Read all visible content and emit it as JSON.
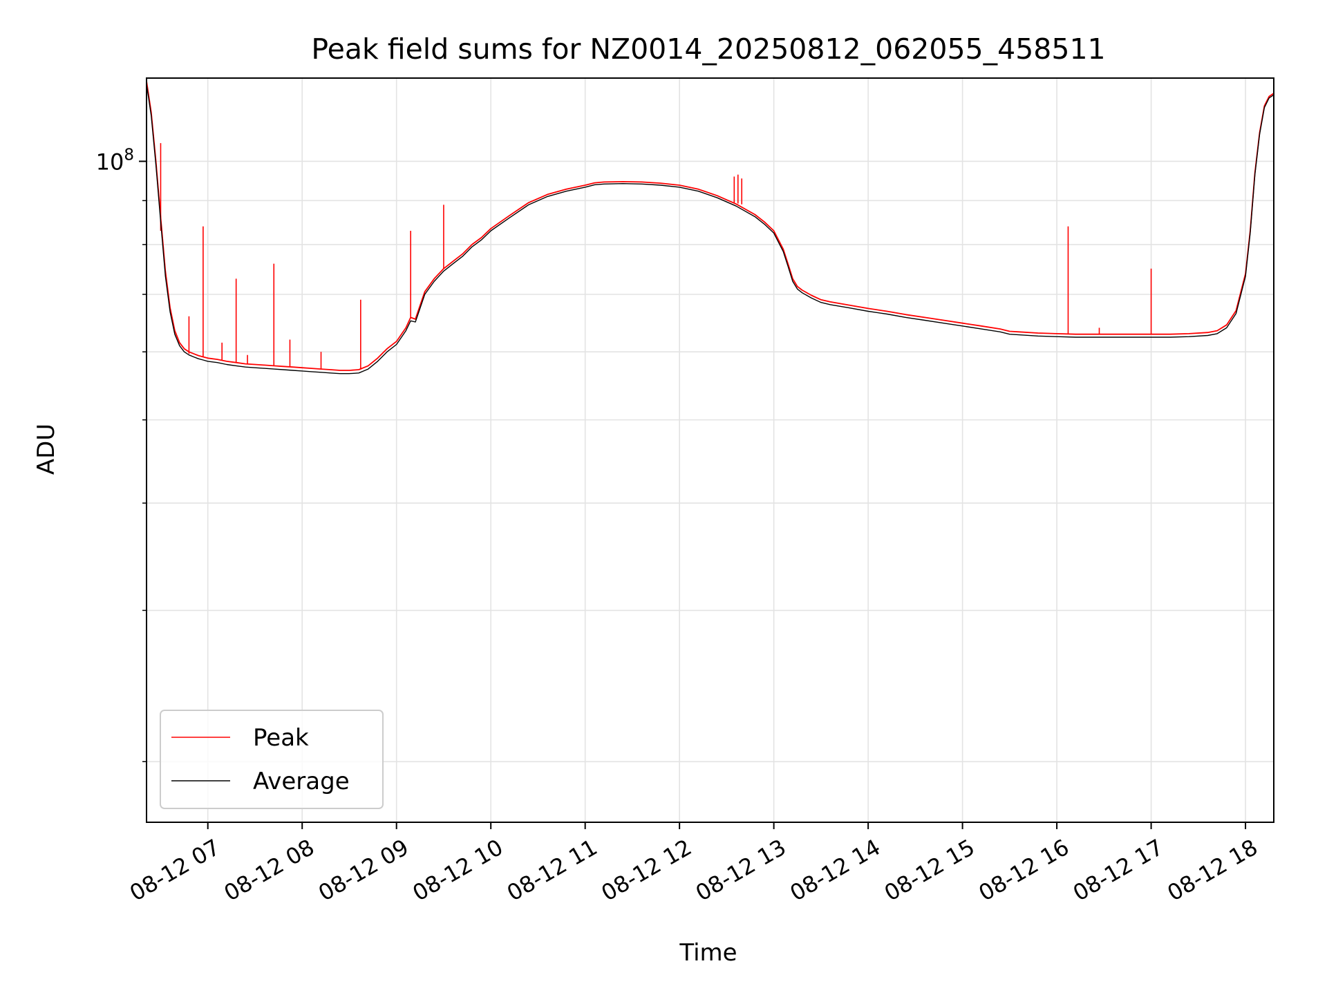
{
  "chart_data": {
    "type": "line",
    "title": "Peak field sums for NZ0014_20250812_062055_458511",
    "xlabel": "Time",
    "ylabel": "ADU",
    "yscale": "log",
    "ylim": [
      17000000,
      125000000
    ],
    "xlim_hours": [
      6.35,
      18.3
    ],
    "grid": true,
    "legend_position": "lower-left",
    "x_ticks": [
      {
        "hour": 7,
        "label": "08-12 07"
      },
      {
        "hour": 8,
        "label": "08-12 08"
      },
      {
        "hour": 9,
        "label": "08-12 09"
      },
      {
        "hour": 10,
        "label": "08-12 10"
      },
      {
        "hour": 11,
        "label": "08-12 11"
      },
      {
        "hour": 12,
        "label": "08-12 12"
      },
      {
        "hour": 13,
        "label": "08-12 13"
      },
      {
        "hour": 14,
        "label": "08-12 14"
      },
      {
        "hour": 15,
        "label": "08-12 15"
      },
      {
        "hour": 16,
        "label": "08-12 16"
      },
      {
        "hour": 17,
        "label": "08-12 17"
      },
      {
        "hour": 18,
        "label": "08-12 18"
      }
    ],
    "y_major_ticks": [
      {
        "value": 100000000,
        "base": "10",
        "exp": "8"
      }
    ],
    "y_minor_ticks": [
      20000000,
      30000000,
      40000000,
      50000000,
      60000000,
      70000000,
      80000000,
      90000000
    ],
    "series": [
      {
        "name": "Peak",
        "color": "#ff0000",
        "x_hours": [
          6.35,
          6.4,
          6.45,
          6.5,
          6.55,
          6.6,
          6.65,
          6.7,
          6.75,
          6.8,
          6.85,
          6.9,
          6.95,
          7.0,
          7.1,
          7.2,
          7.3,
          7.4,
          7.5,
          7.6,
          7.7,
          7.8,
          7.9,
          8.0,
          8.1,
          8.2,
          8.3,
          8.4,
          8.5,
          8.6,
          8.7,
          8.8,
          8.9,
          9.0,
          9.1,
          9.15,
          9.2,
          9.3,
          9.4,
          9.5,
          9.6,
          9.7,
          9.8,
          9.9,
          10.0,
          10.2,
          10.4,
          10.6,
          10.8,
          11.0,
          11.1,
          11.2,
          11.4,
          11.6,
          11.8,
          12.0,
          12.2,
          12.4,
          12.6,
          12.8,
          12.9,
          13.0,
          13.1,
          13.15,
          13.2,
          13.25,
          13.3,
          13.4,
          13.5,
          13.6,
          13.8,
          14.0,
          14.2,
          14.4,
          14.6,
          14.8,
          15.0,
          15.2,
          15.4,
          15.5,
          15.6,
          15.8,
          16.0,
          16.2,
          16.4,
          16.6,
          16.8,
          17.0,
          17.2,
          17.4,
          17.6,
          17.7,
          17.8,
          17.9,
          18.0,
          18.05,
          18.1,
          18.15,
          18.2,
          18.25,
          18.3
        ],
        "values": [
          124000000,
          114000000,
          100000000,
          86000000,
          74500000,
          67500000,
          63500000,
          61500000,
          60500000,
          60000000,
          59700000,
          59400000,
          59200000,
          59000000,
          58800000,
          58500000,
          58300000,
          58100000,
          58000000,
          57900000,
          57800000,
          57700000,
          57600000,
          57500000,
          57400000,
          57300000,
          57200000,
          57100000,
          57100000,
          57200000,
          57800000,
          59000000,
          60500000,
          61700000,
          64000000,
          65800000,
          65500000,
          70500000,
          73000000,
          75000000,
          76500000,
          78000000,
          80000000,
          81500000,
          83500000,
          86500000,
          89500000,
          91500000,
          92800000,
          93800000,
          94400000,
          94600000,
          94700000,
          94600000,
          94300000,
          93800000,
          92800000,
          91200000,
          89200000,
          86700000,
          85000000,
          83000000,
          79000000,
          76000000,
          73000000,
          71500000,
          70800000,
          69800000,
          69000000,
          68600000,
          68000000,
          67400000,
          66900000,
          66300000,
          65800000,
          65300000,
          64800000,
          64300000,
          63800000,
          63400000,
          63300000,
          63100000,
          63000000,
          62900000,
          62900000,
          62900000,
          62900000,
          62900000,
          62900000,
          63000000,
          63200000,
          63500000,
          64500000,
          67000000,
          74000000,
          83000000,
          97000000,
          108000000,
          116000000,
          119000000,
          120000000
        ]
      },
      {
        "name": "Average",
        "color": "#000000",
        "x_hours": [
          6.35,
          6.4,
          6.45,
          6.5,
          6.55,
          6.6,
          6.65,
          6.7,
          6.75,
          6.8,
          6.85,
          6.9,
          6.95,
          7.0,
          7.1,
          7.2,
          7.3,
          7.4,
          7.5,
          7.6,
          7.7,
          7.8,
          7.9,
          8.0,
          8.1,
          8.2,
          8.3,
          8.4,
          8.5,
          8.6,
          8.7,
          8.8,
          8.9,
          9.0,
          9.1,
          9.15,
          9.2,
          9.3,
          9.4,
          9.5,
          9.6,
          9.7,
          9.8,
          9.9,
          10.0,
          10.2,
          10.4,
          10.6,
          10.8,
          11.0,
          11.1,
          11.2,
          11.4,
          11.6,
          11.8,
          12.0,
          12.2,
          12.4,
          12.6,
          12.8,
          12.9,
          13.0,
          13.1,
          13.15,
          13.2,
          13.25,
          13.3,
          13.4,
          13.5,
          13.6,
          13.8,
          14.0,
          14.2,
          14.4,
          14.6,
          14.8,
          15.0,
          15.2,
          15.4,
          15.5,
          15.6,
          15.8,
          16.0,
          16.2,
          16.4,
          16.6,
          16.8,
          17.0,
          17.2,
          17.4,
          17.6,
          17.7,
          17.8,
          17.9,
          18.0,
          18.05,
          18.1,
          18.15,
          18.2,
          18.25,
          18.3
        ],
        "values": [
          123000000,
          113000000,
          99000000,
          85000000,
          73500000,
          66800000,
          62900000,
          61000000,
          60000000,
          59500000,
          59200000,
          58900000,
          58700000,
          58500000,
          58300000,
          58000000,
          57800000,
          57600000,
          57500000,
          57400000,
          57300000,
          57200000,
          57100000,
          57000000,
          56900000,
          56800000,
          56700000,
          56600000,
          56600000,
          56700000,
          57300000,
          58500000,
          60000000,
          61200000,
          63500000,
          65200000,
          65000000,
          70000000,
          72500000,
          74500000,
          76000000,
          77500000,
          79500000,
          81000000,
          83000000,
          86000000,
          89000000,
          91000000,
          92300000,
          93300000,
          93900000,
          94100000,
          94200000,
          94100000,
          93800000,
          93300000,
          92300000,
          90700000,
          88700000,
          86200000,
          84500000,
          82500000,
          78500000,
          75500000,
          72500000,
          71000000,
          70300000,
          69300000,
          68500000,
          68100000,
          67500000,
          66900000,
          66400000,
          65800000,
          65300000,
          64800000,
          64300000,
          63800000,
          63300000,
          62900000,
          62800000,
          62600000,
          62500000,
          62400000,
          62400000,
          62400000,
          62400000,
          62400000,
          62400000,
          62500000,
          62700000,
          63000000,
          64000000,
          66500000,
          73500000,
          82500000,
          96500000,
          107500000,
          115500000,
          118500000,
          119500000
        ]
      }
    ],
    "spikes": [
      {
        "hour": 6.5,
        "base": 83000000,
        "top": 105000000
      },
      {
        "hour": 6.8,
        "base": 59700000,
        "top": 66000000
      },
      {
        "hour": 6.95,
        "base": 59200000,
        "top": 84000000
      },
      {
        "hour": 7.15,
        "base": 58600000,
        "top": 61500000
      },
      {
        "hour": 7.3,
        "base": 58300000,
        "top": 73000000
      },
      {
        "hour": 7.42,
        "base": 58100000,
        "top": 59500000
      },
      {
        "hour": 7.7,
        "base": 57800000,
        "top": 76000000
      },
      {
        "hour": 7.87,
        "base": 57700000,
        "top": 62000000
      },
      {
        "hour": 8.2,
        "base": 57300000,
        "top": 60000000
      },
      {
        "hour": 8.62,
        "base": 57200000,
        "top": 69000000
      },
      {
        "hour": 9.15,
        "base": 65800000,
        "top": 83000000
      },
      {
        "hour": 9.5,
        "base": 75000000,
        "top": 89000000
      },
      {
        "hour": 12.58,
        "base": 89500000,
        "top": 96000000
      },
      {
        "hour": 12.62,
        "base": 89300000,
        "top": 96500000
      },
      {
        "hour": 12.66,
        "base": 89100000,
        "top": 95500000
      },
      {
        "hour": 16.12,
        "base": 62900000,
        "top": 84000000
      },
      {
        "hour": 16.45,
        "base": 62900000,
        "top": 64000000
      },
      {
        "hour": 17.0,
        "base": 62900000,
        "top": 75000000
      }
    ]
  }
}
